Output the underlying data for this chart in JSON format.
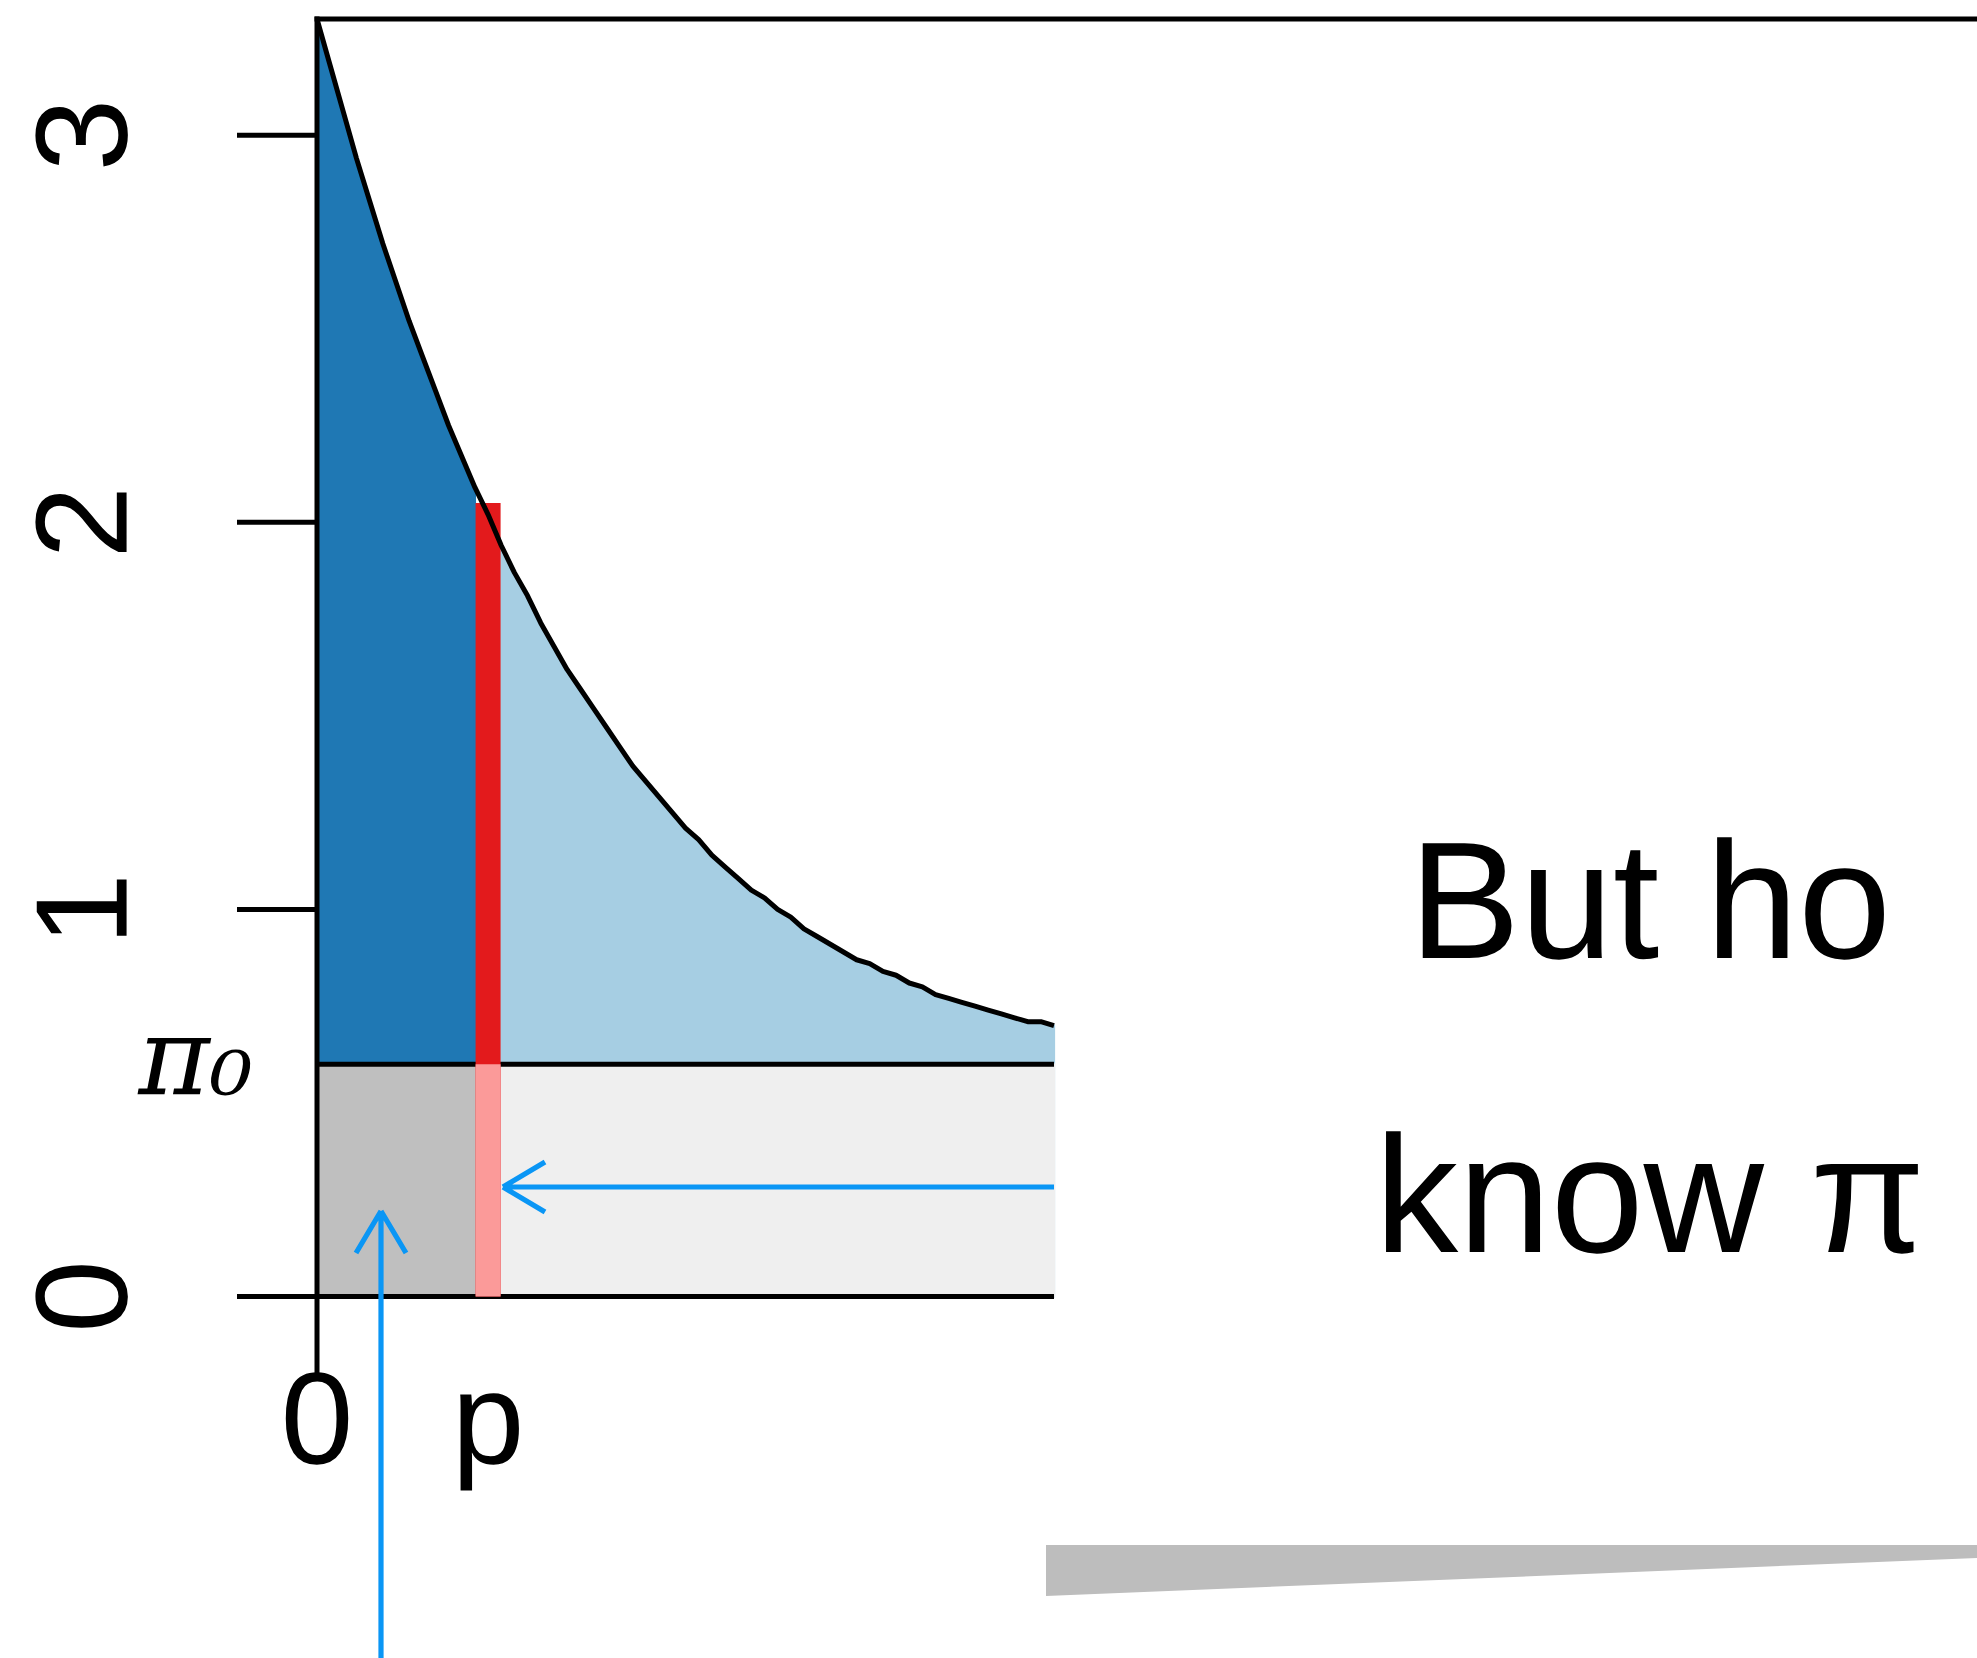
{
  "chart_data": {
    "type": "area",
    "categories": [
      "0",
      null,
      null,
      null,
      null,
      null,
      null,
      null,
      null,
      null,
      null,
      null,
      null,
      "p",
      null,
      null,
      null,
      null,
      null,
      null,
      null,
      null,
      null,
      null,
      null,
      null,
      null,
      null,
      null,
      null,
      null,
      null,
      null,
      null,
      null,
      null,
      null,
      null,
      null,
      null,
      null,
      null,
      null,
      null,
      null,
      null,
      null,
      null,
      null,
      null,
      null,
      null,
      null,
      null,
      null,
      null,
      null
    ],
    "series": [
      {
        "color": "#1f78b4",
        "values": [
          3.3,
          3.18,
          3.06,
          2.94,
          2.83,
          2.72,
          2.62,
          2.52,
          2.43,
          2.34,
          2.25,
          2.17,
          2.09,
          null,
          null,
          null,
          null,
          null,
          null,
          null,
          null,
          null,
          null,
          null,
          null,
          null,
          null,
          null,
          null,
          null,
          null,
          null,
          null,
          null,
          null,
          null,
          null,
          null,
          null,
          null,
          null,
          null,
          null,
          null,
          null,
          null,
          null,
          null,
          null,
          null,
          null,
          null,
          null,
          null,
          null,
          null,
          null
        ]
      },
      {
        "color": "#a6cee3",
        "values": [
          null,
          null,
          null,
          null,
          null,
          null,
          null,
          null,
          null,
          null,
          null,
          null,
          null,
          null,
          1.94,
          1.87,
          1.81,
          1.74,
          1.68,
          1.62,
          1.57,
          1.52,
          1.47,
          1.42,
          1.37,
          1.33,
          1.29,
          1.25,
          1.21,
          1.18,
          1.14,
          1.11,
          1.08,
          1.05,
          1.03,
          1.0,
          0.98,
          0.95,
          0.93,
          0.91,
          0.89,
          0.87,
          0.86,
          0.84,
          0.83,
          0.81,
          0.8,
          0.78,
          0.77,
          0.76,
          0.75,
          0.74,
          0.73,
          0.72,
          0.71,
          0.71,
          0.7
        ]
      },
      {
        "color": "#bfbfbf",
        "values": [
          0.6,
          0.6,
          0.6,
          0.6,
          0.6,
          0.6,
          0.6,
          0.6,
          0.6,
          0.6,
          0.6,
          0.6,
          0.6,
          null,
          null,
          null,
          null,
          null,
          null,
          null,
          null,
          null,
          null,
          null,
          null,
          null,
          null,
          null,
          null,
          null,
          null,
          null,
          null,
          null,
          null,
          null,
          null,
          null,
          null,
          null,
          null,
          null,
          null,
          null,
          null,
          null,
          null,
          null,
          null,
          null,
          null,
          null,
          null,
          null,
          null,
          null,
          null
        ]
      },
      {
        "color": "#efefef",
        "values": [
          null,
          null,
          null,
          null,
          null,
          null,
          null,
          null,
          null,
          null,
          null,
          null,
          null,
          null,
          0.6,
          0.6,
          0.6,
          0.6,
          0.6,
          0.6,
          0.6,
          0.6,
          0.6,
          0.6,
          0.6,
          0.6,
          0.6,
          0.6,
          0.6,
          0.6,
          0.6,
          0.6,
          0.6,
          0.6,
          0.6,
          0.6,
          0.6,
          0.6,
          0.6,
          0.6,
          0.6,
          0.6,
          0.6,
          0.6,
          0.6,
          0.6,
          0.6,
          0.6,
          0.6,
          0.6,
          0.6,
          0.6,
          0.6,
          0.6,
          0.6,
          0.6,
          0.6
        ]
      },
      {
        "type": "bar",
        "color": "#e31a1c",
        "values": [
          null,
          null,
          null,
          null,
          null,
          null,
          null,
          null,
          null,
          null,
          null,
          null,
          null,
          2.05,
          null,
          null,
          null,
          null,
          null,
          null,
          null,
          null,
          null,
          null,
          null,
          null,
          null,
          null,
          null,
          null,
          null,
          null,
          null,
          null,
          null,
          null,
          null,
          null,
          null,
          null,
          null,
          null,
          null,
          null,
          null,
          null,
          null,
          null,
          null,
          null,
          null,
          null,
          null,
          null,
          null,
          null,
          null
        ]
      },
      {
        "type": "bar",
        "color": "#fb9a99",
        "values": [
          null,
          null,
          null,
          null,
          null,
          null,
          null,
          null,
          null,
          null,
          null,
          null,
          null,
          0.6,
          null,
          null,
          null,
          null,
          null,
          null,
          null,
          null,
          null,
          null,
          null,
          null,
          null,
          null,
          null,
          null,
          null,
          null,
          null,
          null,
          null,
          null,
          null,
          null,
          null,
          null,
          null,
          null,
          null,
          null,
          null,
          null,
          null,
          null,
          null,
          null,
          null,
          null,
          null,
          null,
          null,
          null,
          null
        ]
      },
      {
        "type": "line",
        "color": "#000000",
        "values": [
          3.3,
          3.18,
          3.06,
          2.94,
          2.83,
          2.72,
          2.62,
          2.52,
          2.43,
          2.34,
          2.25,
          2.17,
          2.09,
          2.02,
          1.94,
          1.87,
          1.81,
          1.74,
          1.68,
          1.62,
          1.57,
          1.52,
          1.47,
          1.42,
          1.37,
          1.33,
          1.29,
          1.25,
          1.21,
          1.18,
          1.14,
          1.11,
          1.08,
          1.05,
          1.03,
          1.0,
          0.98,
          0.95,
          0.93,
          0.91,
          0.89,
          0.87,
          0.86,
          0.84,
          0.83,
          0.81,
          0.8,
          0.78,
          0.77,
          0.76,
          0.75,
          0.74,
          0.73,
          0.72,
          0.71,
          0.71,
          0.7
        ]
      }
    ],
    "ylim": [
      -0.2,
      3.3
    ],
    "yticks": [
      0,
      1,
      2,
      3
    ],
    "ref_lines": [
      {
        "axis": "y",
        "value": 0.6,
        "label": "π₀",
        "color": "#000000"
      },
      {
        "axis": "y",
        "value": 0,
        "color": "#000000"
      }
    ],
    "annotations": [
      "But ho",
      "know π"
    ]
  }
}
